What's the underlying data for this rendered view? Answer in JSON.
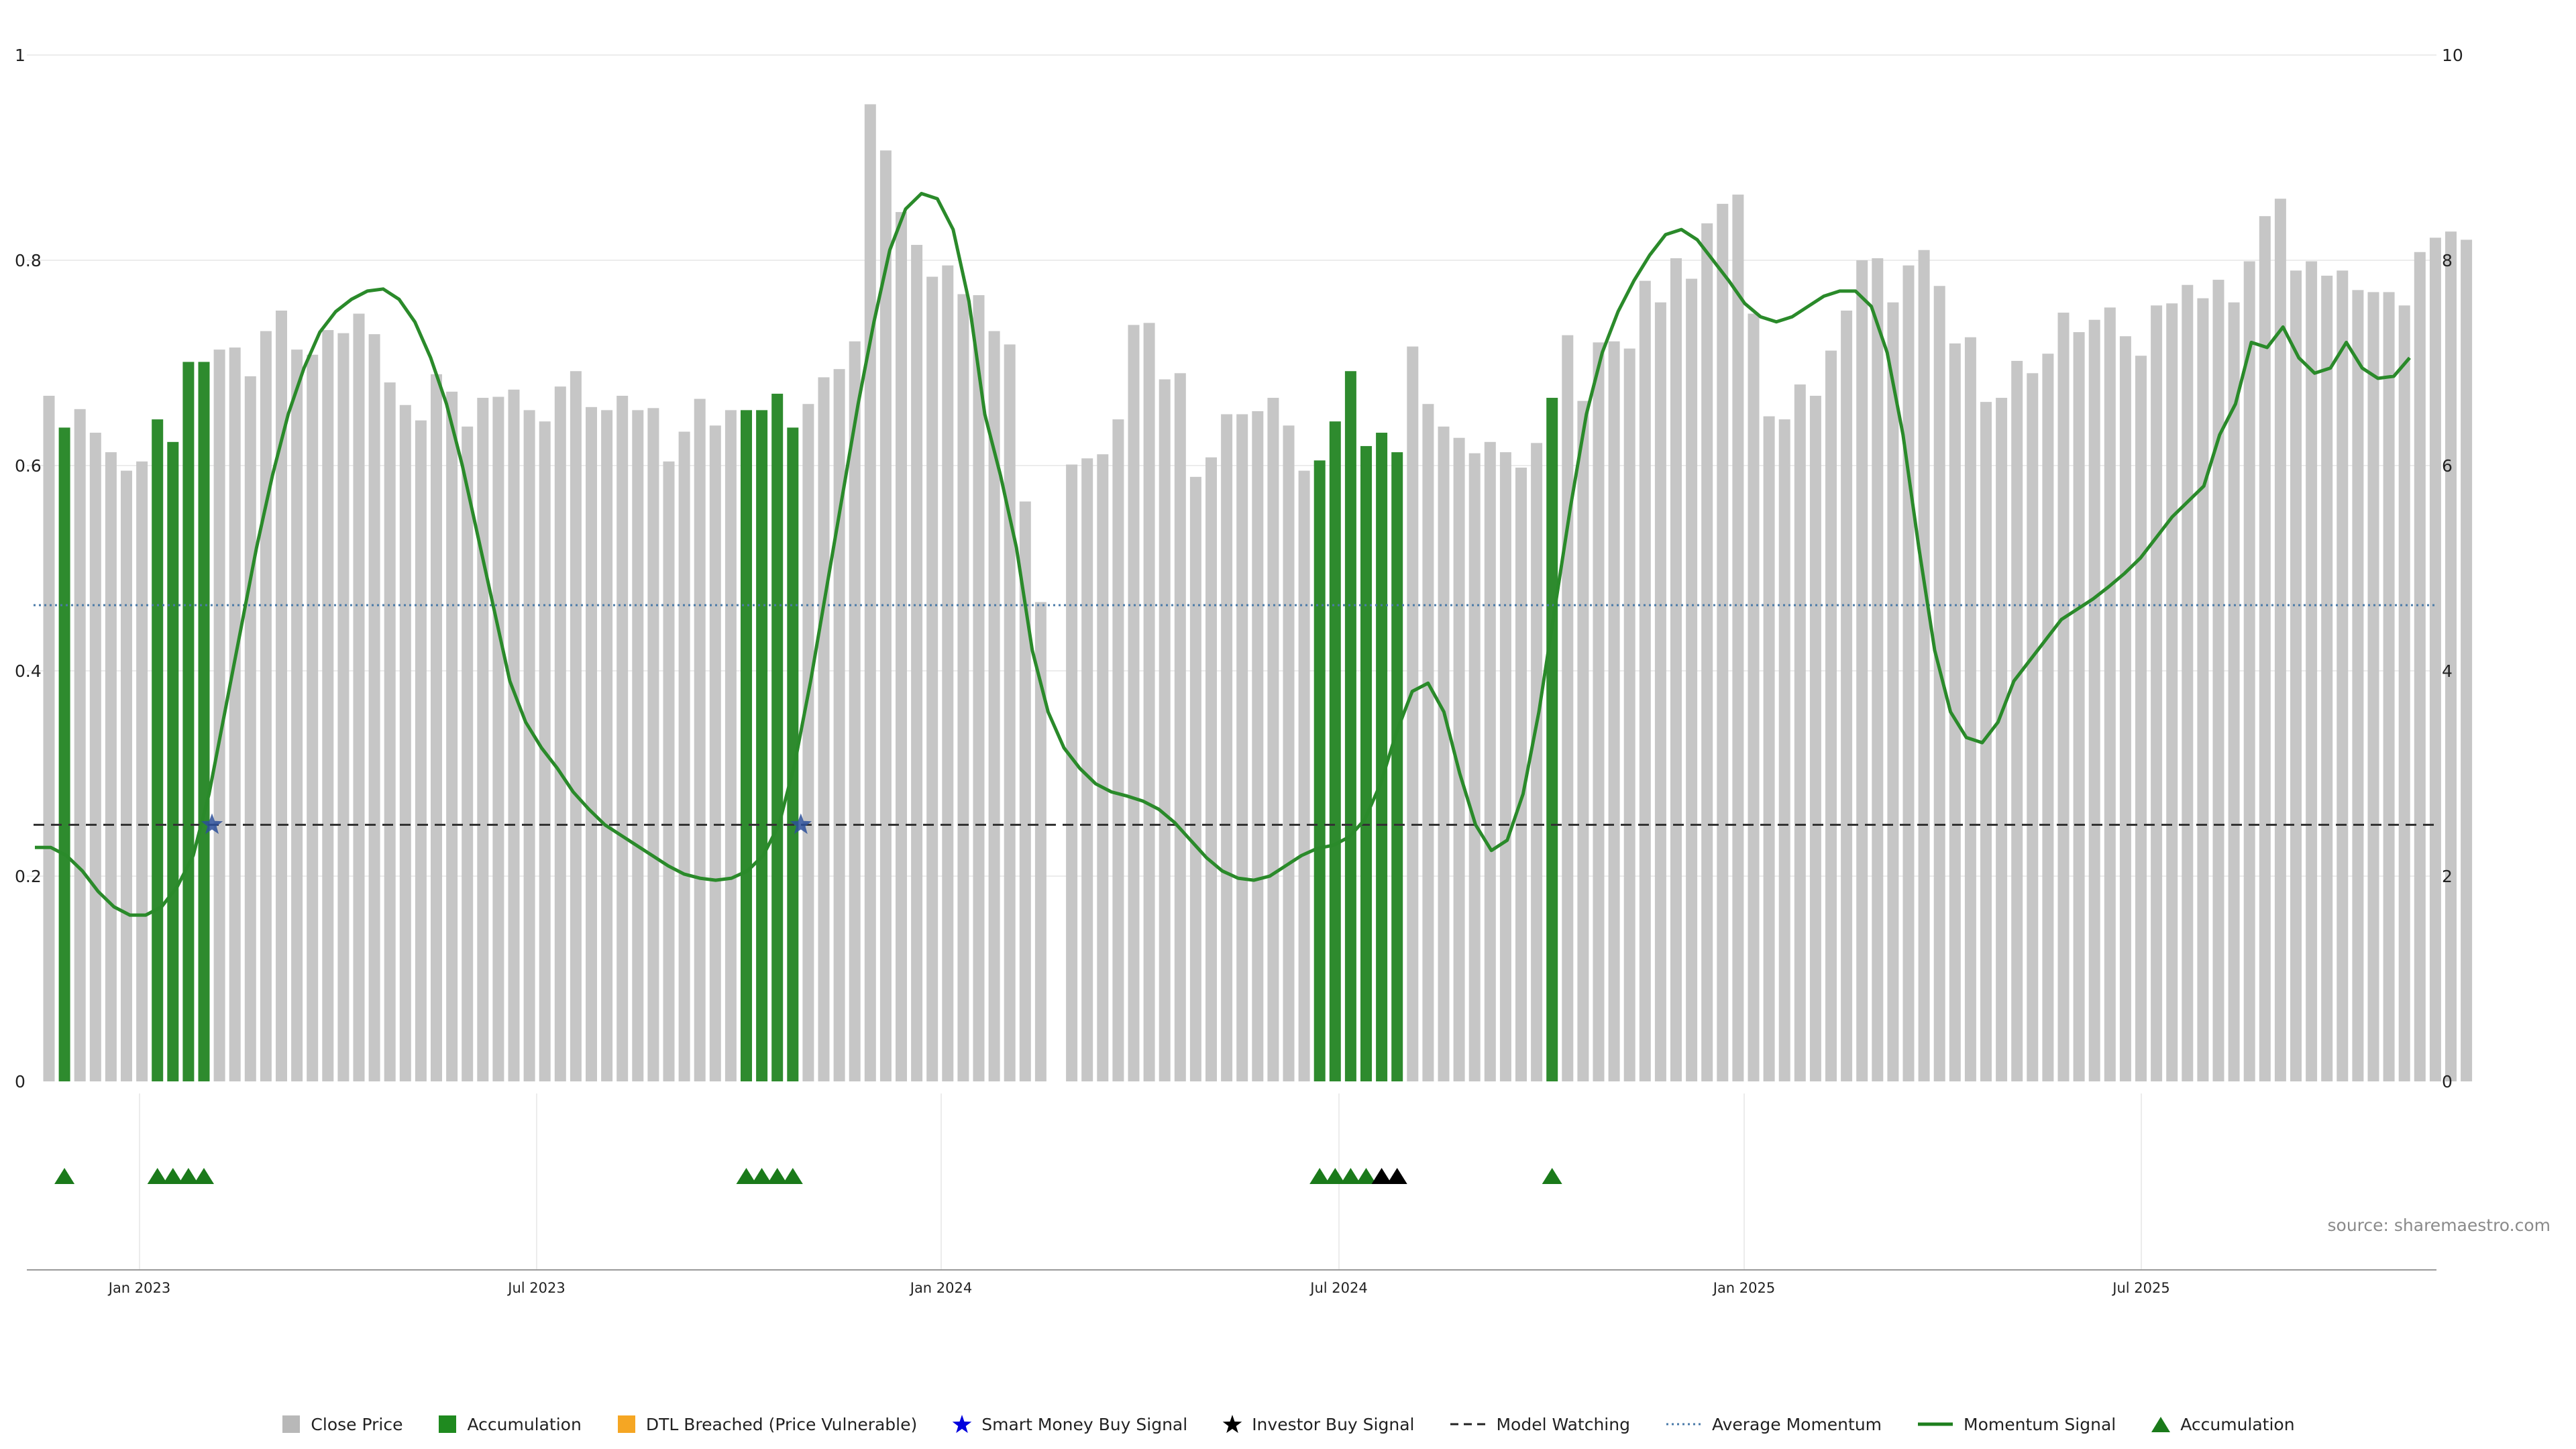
{
  "chart_data": {
    "type": "bar",
    "title": "",
    "xlabel": "",
    "ylabel": "",
    "ylim_left": [
      0,
      1
    ],
    "ylim_right": [
      0,
      10
    ],
    "left_ticks": [
      "0",
      "0.2",
      "0.4",
      "0.6",
      "0.8",
      "1"
    ],
    "right_ticks": [
      "0",
      "2",
      "4",
      "6",
      "8",
      "10"
    ],
    "x_ticks": [
      "Jan 2023",
      "Jul 2023",
      "Jan 2024",
      "Jul 2024",
      "Jan 2025",
      "Jul 2025"
    ],
    "grid": true,
    "legend_position": "bottom-center",
    "average_momentum": 0.464,
    "model_watching_level": 0.25,
    "colors": {
      "close_price": "#c6c6c6",
      "accumulation": "#2e8b2e",
      "dtl_breached": "#f5a623",
      "smart_money": "#0000dd",
      "investor": "#000000",
      "model_watching": "#333333",
      "average_momentum": "#4a7aa8",
      "momentum": "#2a8a2a",
      "accumulation_marker": "#1a7a1a"
    },
    "series": [
      {
        "name": "Close Price",
        "role": "bars",
        "values": [
          0.668,
          0.637,
          0.655,
          0.632,
          0.613,
          0.595,
          0.604,
          0.645,
          0.623,
          0.701,
          0.701,
          0.713,
          0.715,
          0.687,
          0.731,
          0.751,
          0.713,
          0.708,
          0.732,
          0.729,
          0.748,
          0.728,
          0.681,
          0.659,
          0.644,
          0.689,
          0.672,
          0.638,
          0.666,
          0.667,
          0.674,
          0.654,
          0.643,
          0.677,
          0.692,
          0.657,
          0.654,
          0.668,
          0.654,
          0.656,
          0.604,
          0.633,
          0.665,
          0.639,
          0.654,
          0.654,
          0.654,
          0.67,
          0.637,
          0.66,
          0.686,
          0.694,
          0.721,
          0.952,
          0.907,
          0.847,
          0.815,
          0.784,
          0.795,
          0.767,
          0.766,
          0.731,
          0.718,
          0.565,
          0.467,
          0.0,
          0.601,
          0.607,
          0.611,
          0.645,
          0.737,
          0.739,
          0.684,
          0.69,
          0.589,
          0.608,
          0.65,
          0.65,
          0.653,
          0.666,
          0.639,
          0.595,
          0.605,
          0.643,
          0.692,
          0.619,
          0.632,
          0.613,
          0.716,
          0.66,
          0.638,
          0.627,
          0.612,
          0.623,
          0.613,
          0.598,
          0.622,
          0.666,
          0.727,
          0.663,
          0.72,
          0.721,
          0.714,
          0.78,
          0.759,
          0.802,
          0.782,
          0.836,
          0.855,
          0.864,
          0.748,
          0.648,
          0.645,
          0.679,
          0.668,
          0.712,
          0.751,
          0.8,
          0.802,
          0.759,
          0.795,
          0.81,
          0.775,
          0.719,
          0.725,
          0.662,
          0.666,
          0.702,
          0.69,
          0.709,
          0.749,
          0.73,
          0.742,
          0.754,
          0.726,
          0.707,
          0.756,
          0.758,
          0.776,
          0.763,
          0.781,
          0.759,
          0.799,
          0.843,
          0.86,
          0.79,
          0.799,
          0.785,
          0.79,
          0.771,
          0.769,
          0.769,
          0.756,
          0.808,
          0.822,
          0.828,
          0.82
        ]
      },
      {
        "name": "Accumulation",
        "role": "bar-highlight",
        "indices": [
          1,
          7,
          8,
          9,
          10,
          45,
          46,
          47,
          48,
          82,
          83,
          84,
          85,
          86,
          87,
          97
        ]
      },
      {
        "name": "Momentum Signal",
        "role": "line",
        "points": [
          [
            0,
            2.28
          ],
          [
            1,
            2.28
          ],
          [
            2,
            2.2
          ],
          [
            3,
            2.05
          ],
          [
            4,
            1.85
          ],
          [
            5,
            1.7
          ],
          [
            6,
            1.62
          ],
          [
            7,
            1.62
          ],
          [
            8,
            1.7
          ],
          [
            9,
            1.9
          ],
          [
            10,
            2.2
          ],
          [
            11,
            2.8
          ],
          [
            12,
            3.6
          ],
          [
            13,
            4.4
          ],
          [
            14,
            5.2
          ],
          [
            15,
            5.9
          ],
          [
            16,
            6.5
          ],
          [
            17,
            6.95
          ],
          [
            18,
            7.3
          ],
          [
            19,
            7.5
          ],
          [
            20,
            7.62
          ],
          [
            21,
            7.7
          ],
          [
            22,
            7.72
          ],
          [
            23,
            7.62
          ],
          [
            24,
            7.4
          ],
          [
            25,
            7.05
          ],
          [
            26,
            6.6
          ],
          [
            27,
            6.0
          ],
          [
            28,
            5.3
          ],
          [
            29,
            4.6
          ],
          [
            30,
            3.9
          ],
          [
            31,
            3.5
          ],
          [
            32,
            3.25
          ],
          [
            33,
            3.05
          ],
          [
            34,
            2.82
          ],
          [
            35,
            2.65
          ],
          [
            36,
            2.5
          ],
          [
            37,
            2.4
          ],
          [
            38,
            2.3
          ],
          [
            39,
            2.2
          ],
          [
            40,
            2.1
          ],
          [
            41,
            2.02
          ],
          [
            42,
            1.98
          ],
          [
            43,
            1.96
          ],
          [
            44,
            1.98
          ],
          [
            45,
            2.05
          ],
          [
            46,
            2.2
          ],
          [
            47,
            2.5
          ],
          [
            48,
            3.1
          ],
          [
            49,
            3.9
          ],
          [
            50,
            4.8
          ],
          [
            51,
            5.7
          ],
          [
            52,
            6.6
          ],
          [
            53,
            7.4
          ],
          [
            54,
            8.1
          ],
          [
            55,
            8.5
          ],
          [
            56,
            8.65
          ],
          [
            57,
            8.6
          ],
          [
            58,
            8.3
          ],
          [
            59,
            7.6
          ],
          [
            60,
            6.5
          ],
          [
            61,
            5.9
          ],
          [
            62,
            5.2
          ],
          [
            63,
            4.2
          ],
          [
            64,
            3.6
          ],
          [
            65,
            3.25
          ],
          [
            66,
            3.05
          ],
          [
            67,
            2.9
          ],
          [
            68,
            2.82
          ],
          [
            69,
            2.78
          ],
          [
            70,
            2.73
          ],
          [
            71,
            2.65
          ],
          [
            72,
            2.52
          ],
          [
            73,
            2.35
          ],
          [
            74,
            2.18
          ],
          [
            75,
            2.05
          ],
          [
            76,
            1.98
          ],
          [
            77,
            1.96
          ],
          [
            78,
            2.0
          ],
          [
            79,
            2.1
          ],
          [
            80,
            2.2
          ],
          [
            81,
            2.27
          ],
          [
            82,
            2.3
          ],
          [
            83,
            2.38
          ],
          [
            84,
            2.55
          ],
          [
            85,
            2.9
          ],
          [
            86,
            3.4
          ],
          [
            87,
            3.8
          ],
          [
            88,
            3.88
          ],
          [
            89,
            3.6
          ],
          [
            90,
            3.0
          ],
          [
            91,
            2.5
          ],
          [
            92,
            2.25
          ],
          [
            93,
            2.35
          ],
          [
            94,
            2.8
          ],
          [
            95,
            3.6
          ],
          [
            96,
            4.6
          ],
          [
            97,
            5.6
          ],
          [
            98,
            6.5
          ],
          [
            99,
            7.1
          ],
          [
            100,
            7.5
          ],
          [
            101,
            7.8
          ],
          [
            102,
            8.05
          ],
          [
            103,
            8.25
          ],
          [
            104,
            8.3
          ],
          [
            105,
            8.2
          ],
          [
            106,
            8.0
          ],
          [
            107,
            7.8
          ],
          [
            108,
            7.58
          ],
          [
            109,
            7.45
          ],
          [
            110,
            7.4
          ],
          [
            111,
            7.45
          ],
          [
            112,
            7.55
          ],
          [
            113,
            7.65
          ],
          [
            114,
            7.7
          ],
          [
            115,
            7.7
          ],
          [
            116,
            7.55
          ],
          [
            117,
            7.1
          ],
          [
            118,
            6.3
          ],
          [
            119,
            5.2
          ],
          [
            120,
            4.2
          ],
          [
            121,
            3.6
          ],
          [
            122,
            3.35
          ],
          [
            123,
            3.3
          ],
          [
            124,
            3.5
          ],
          [
            125,
            3.9
          ],
          [
            126,
            4.1
          ],
          [
            127,
            4.3
          ],
          [
            128,
            4.5
          ],
          [
            129,
            4.6
          ],
          [
            130,
            4.7
          ],
          [
            131,
            4.82
          ],
          [
            132,
            4.95
          ],
          [
            133,
            5.1
          ],
          [
            134,
            5.3
          ],
          [
            135,
            5.5
          ],
          [
            136,
            5.65
          ],
          [
            137,
            5.8
          ],
          [
            138,
            6.3
          ],
          [
            139,
            6.6
          ],
          [
            140,
            7.2
          ],
          [
            141,
            7.15
          ],
          [
            142,
            7.35
          ],
          [
            143,
            7.05
          ],
          [
            144,
            6.9
          ],
          [
            145,
            6.95
          ],
          [
            146,
            7.2
          ],
          [
            147,
            6.95
          ],
          [
            148,
            6.85
          ],
          [
            149,
            6.87
          ],
          [
            150,
            7.05
          ]
        ]
      },
      {
        "name": "Model Watching",
        "role": "hline",
        "value": 0.25
      },
      {
        "name": "Average Momentum",
        "role": "hline",
        "value": 0.464
      },
      {
        "name": "Smart Money Buy Signal",
        "role": "markers",
        "points": [
          [
            10,
            0.25
          ],
          [
            48,
            0.25
          ]
        ]
      },
      {
        "name": "Accumulation",
        "role": "triangle-markers",
        "indices": [
          1,
          7,
          8,
          9,
          10,
          45,
          46,
          47,
          48,
          82,
          83,
          84,
          85,
          97
        ]
      },
      {
        "name": "Investor Buy Signal",
        "role": "triangle-markers-black",
        "indices": [
          86,
          87
        ]
      }
    ],
    "legend": [
      {
        "label": "Close Price",
        "symbol": "square",
        "color": "#b8b8b8"
      },
      {
        "label": "Accumulation",
        "symbol": "square",
        "color": "#1f8a1f"
      },
      {
        "label": "DTL Breached (Price Vulnerable)",
        "symbol": "square",
        "color": "#f5a623"
      },
      {
        "label": "Smart Money Buy Signal",
        "symbol": "star",
        "color": "#0000dd"
      },
      {
        "label": "Investor Buy Signal",
        "symbol": "star",
        "color": "#000000"
      },
      {
        "label": "Model Watching",
        "symbol": "dash",
        "color": "#222222"
      },
      {
        "label": "Average Momentum",
        "symbol": "dot",
        "color": "#4a7aa8"
      },
      {
        "label": "Momentum Signal",
        "symbol": "line",
        "color": "#1e7f1e"
      },
      {
        "label": "Accumulation",
        "symbol": "triangle",
        "color": "#1a7a1a"
      }
    ],
    "source": "source: sharemaestro.com"
  }
}
